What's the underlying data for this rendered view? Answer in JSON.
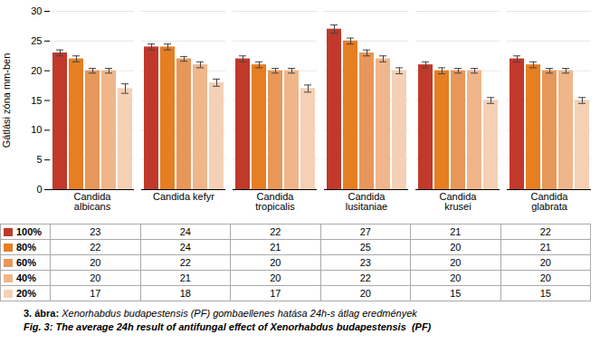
{
  "chart_data": {
    "type": "bar",
    "categories": [
      "Candida\nalbicans",
      "Candida kefyr",
      "Candida\ntropicalis",
      "Candida\nlusitaniae",
      "Candida\nkrusei",
      "Candida\nglabrata"
    ],
    "series": [
      {
        "name": "100%",
        "color": "#c0392b",
        "values": [
          23,
          24,
          22,
          27,
          21,
          22
        ],
        "errors": [
          0.5,
          0.5,
          0.5,
          0.7,
          0.5,
          0.5
        ]
      },
      {
        "name": "80%",
        "color": "#e67e22",
        "values": [
          22,
          24,
          21,
          25,
          20,
          21
        ],
        "errors": [
          0.5,
          0.5,
          0.5,
          0.5,
          0.5,
          0.5
        ]
      },
      {
        "name": "60%",
        "color": "#e8975a",
        "values": [
          20,
          22,
          20,
          23,
          20,
          20
        ],
        "errors": [
          0.4,
          0.4,
          0.4,
          0.5,
          0.4,
          0.4
        ]
      },
      {
        "name": "40%",
        "color": "#f0b68a",
        "values": [
          20,
          21,
          20,
          22,
          20,
          20
        ],
        "errors": [
          0.4,
          0.5,
          0.4,
          0.5,
          0.4,
          0.4
        ]
      },
      {
        "name": "20%",
        "color": "#f5d0b5",
        "values": [
          17,
          18,
          17,
          20,
          15,
          15
        ],
        "errors": [
          0.8,
          0.6,
          0.6,
          0.5,
          0.5,
          0.5
        ]
      }
    ],
    "ylabel": "Gátlási zóna mm-ben",
    "ylim": [
      0,
      30
    ],
    "yticks": [
      0,
      5,
      10,
      15,
      20,
      25,
      30
    ],
    "grid": true,
    "table": {
      "row_labels": [
        "100%",
        "80%",
        "60%",
        "40%",
        "20%"
      ],
      "colors": [
        "#c0392b",
        "#e67e22",
        "#e8975a",
        "#f0b68a",
        "#f5d0b5"
      ],
      "values": [
        [
          23,
          24,
          22,
          27,
          21,
          22
        ],
        [
          22,
          24,
          21,
          25,
          20,
          21
        ],
        [
          20,
          22,
          20,
          23,
          20,
          20
        ],
        [
          20,
          21,
          20,
          22,
          20,
          20
        ],
        [
          17,
          18,
          17,
          20,
          15,
          15
        ]
      ]
    },
    "caption_label": "3. ábra:",
    "caption": " Xenorhabdus budapestensis (PF) gombaellenes hatása 24h-s átlag eredmények",
    "caption2": "Fig. 3: The average 24h result of antifungal effect of Xenorhabdus budapestensis  (PF)"
  }
}
